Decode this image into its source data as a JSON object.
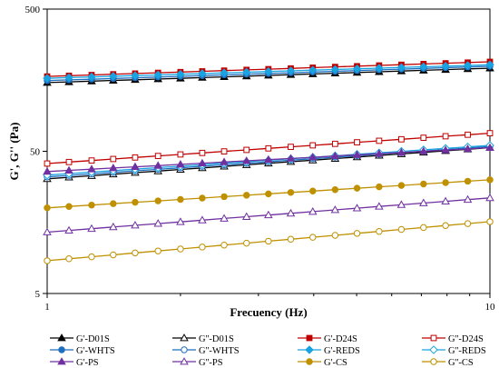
{
  "chart_data": {
    "type": "line",
    "title": "",
    "xlabel": "Frecuency (Hz)",
    "ylabel": "G', G'' (Pa)",
    "xscale": "log",
    "yscale": "log",
    "xlim": [
      1,
      10
    ],
    "ylim": [
      5,
      500
    ],
    "xticks": [
      "1",
      "10"
    ],
    "yticks": [
      "5",
      "50",
      "500"
    ],
    "grid": false,
    "legend_position": "bottom",
    "x": [
      1.0,
      1.12,
      1.26,
      1.41,
      1.58,
      1.78,
      2.0,
      2.24,
      2.51,
      2.82,
      3.16,
      3.55,
      3.98,
      4.47,
      5.01,
      5.62,
      6.31,
      7.08,
      7.94,
      8.91,
      10.0
    ],
    "series": [
      {
        "name": "G'-D01S",
        "color": "#000000",
        "marker": "triangle",
        "filled": true,
        "y_start": 152,
        "y_end": 192
      },
      {
        "name": "G''-D01S",
        "color": "#000000",
        "marker": "triangle",
        "filled": false,
        "y_start": 32,
        "y_end": 53
      },
      {
        "name": "G'-D24S",
        "color": "#c00000",
        "marker": "square",
        "filled": true,
        "y_start": 168,
        "y_end": 213
      },
      {
        "name": "G''-D24S",
        "color": "#c00000",
        "marker": "square",
        "filled": false,
        "y_start": 41,
        "y_end": 67
      },
      {
        "name": "G'-WHTS",
        "color": "#1f6fbf",
        "marker": "circle",
        "filled": true,
        "y_start": 157,
        "y_end": 198
      },
      {
        "name": "G''-WHTS",
        "color": "#1f6fbf",
        "marker": "circle",
        "filled": false,
        "y_start": 33,
        "y_end": 54
      },
      {
        "name": "G'-REDS",
        "color": "#19a3e0",
        "marker": "diamond",
        "filled": true,
        "y_start": 163,
        "y_end": 203
      },
      {
        "name": "G''-REDS",
        "color": "#19a3e0",
        "marker": "diamond",
        "filled": false,
        "y_start": 34,
        "y_end": 55
      },
      {
        "name": "G'-PS",
        "color": "#7030a0",
        "marker": "triangle",
        "filled": true,
        "y_start": 36,
        "y_end": 53
      },
      {
        "name": "G''-PS",
        "color": "#7030a0",
        "marker": "triangle",
        "filled": false,
        "y_start": 13.5,
        "y_end": 23.5
      },
      {
        "name": "G'-CS",
        "color": "#bf9000",
        "marker": "circle",
        "filled": true,
        "y_start": 20,
        "y_end": 31.5
      },
      {
        "name": "G''-CS",
        "color": "#bf9000",
        "marker": "circle",
        "filled": false,
        "y_start": 8.5,
        "y_end": 16
      }
    ]
  }
}
